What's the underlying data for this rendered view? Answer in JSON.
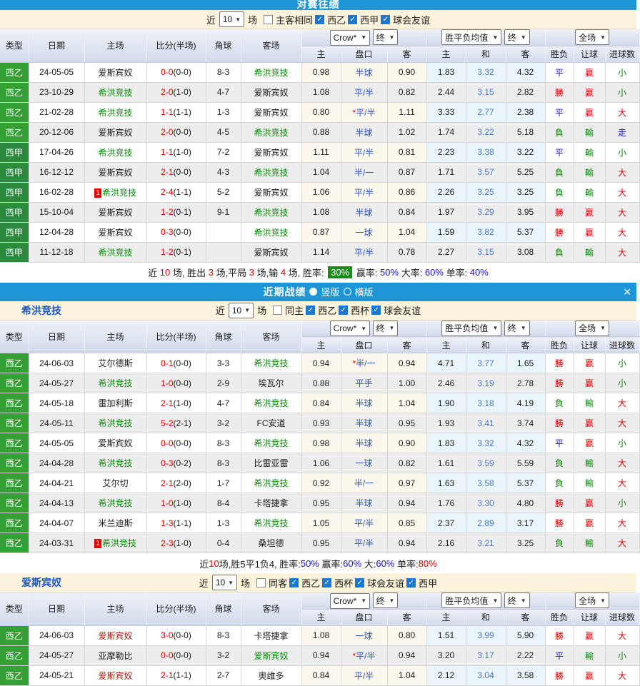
{
  "labels": {
    "near": "近",
    "games": "场"
  },
  "columns": {
    "main": [
      "类型",
      "日期",
      "主场",
      "比分(半场)",
      "角球",
      "客场"
    ],
    "sub": [
      "主",
      "盘口",
      "客",
      "主",
      "和",
      "客",
      "胜负",
      "让球",
      "进球数"
    ]
  },
  "selects": {
    "company": "Crow*",
    "final1": "终",
    "euro": "胜平负均值",
    "final2": "终",
    "scope": "全场"
  },
  "league_colors": {
    "西乙": "#35a035",
    "西甲": "#2c8a3e"
  },
  "text_colors": {
    "k": "#1a1a1a",
    "r": "#e60000",
    "g": "#078a07",
    "b": "#1414cc",
    "d": "#aa2211"
  },
  "accent": {
    "bar_blue": "#1e96d5",
    "cream": "#fcf3dc",
    "handicap_blue": "#2b50c8",
    "badge_green": "#1d8a1d"
  },
  "sections": [
    {
      "title": "对赛往绩",
      "filter": {
        "count": "10",
        "unchecked": "主客相同",
        "checked": [
          "西乙",
          "西甲",
          "球会友谊"
        ]
      },
      "rows": [
        [
          "西乙",
          "24-05-05",
          [
            "爱斯宾奴",
            "k"
          ],
          [
            "0-0",
            "(0-0)"
          ],
          "8-3",
          [
            "希洪竞技",
            "g"
          ],
          "0.98",
          "半球",
          "0.90",
          "1.83",
          "3.32",
          "4.32",
          [
            "平",
            "b"
          ],
          [
            "赢",
            "r"
          ],
          [
            "小",
            "g"
          ]
        ],
        [
          "西乙",
          "23-10-29",
          [
            "希洪竞技",
            "g"
          ],
          [
            "2-0",
            "(1-0)"
          ],
          "4-7",
          [
            "爱斯宾奴",
            "k"
          ],
          "1.08",
          "平/半",
          "0.82",
          "2.44",
          "3.15",
          "2.82",
          [
            "勝",
            "r"
          ],
          [
            "赢",
            "r"
          ],
          [
            "小",
            "g"
          ]
        ],
        [
          "西乙",
          "21-02-28",
          [
            "希洪竞技",
            "g"
          ],
          [
            "1-1",
            "(1-1)"
          ],
          "1-3",
          [
            "爱斯宾奴",
            "k"
          ],
          "0.80",
          "*平/半",
          "1.11",
          "3.33",
          "2.77",
          "2.38",
          [
            "平",
            "b"
          ],
          [
            "赢",
            "r"
          ],
          [
            "大",
            "r"
          ]
        ],
        [
          "西乙",
          "20-12-06",
          [
            "爱斯宾奴",
            "k"
          ],
          [
            "2-0",
            "(0-0)"
          ],
          "4-5",
          [
            "希洪竞技",
            "g"
          ],
          "0.88",
          "半球",
          "1.02",
          "1.74",
          "3.22",
          "5.18",
          [
            "負",
            "g"
          ],
          [
            "輸",
            "g"
          ],
          [
            "走",
            "b"
          ]
        ],
        [
          "西甲",
          "17-04-26",
          [
            "希洪竞技",
            "g"
          ],
          [
            "1-1",
            "(1-0)"
          ],
          "7-2",
          [
            "爱斯宾奴",
            "k"
          ],
          "1.11",
          "平/半",
          "0.81",
          "2.23",
          "3.38",
          "3.22",
          [
            "平",
            "b"
          ],
          [
            "輸",
            "g"
          ],
          [
            "小",
            "g"
          ]
        ],
        [
          "西甲",
          "16-12-12",
          [
            "爱斯宾奴",
            "k"
          ],
          [
            "2-1",
            "(0-0)"
          ],
          "4-3",
          [
            "希洪竞技",
            "g"
          ],
          "1.04",
          "半/一",
          "0.87",
          "1.71",
          "3.57",
          "5.25",
          [
            "負",
            "g"
          ],
          [
            "輸",
            "g"
          ],
          [
            "大",
            "r"
          ]
        ],
        [
          "西甲",
          "16-02-28",
          [
            "希洪竞技",
            "g",
            1
          ],
          [
            "2-4",
            "(1-1)"
          ],
          "5-2",
          [
            "爱斯宾奴",
            "k"
          ],
          "1.06",
          "平/半",
          "0.86",
          "2.26",
          "3.25",
          "3.25",
          [
            "負",
            "g"
          ],
          [
            "輸",
            "g"
          ],
          [
            "大",
            "r"
          ]
        ],
        [
          "西甲",
          "15-10-04",
          [
            "爱斯宾奴",
            "k"
          ],
          [
            "1-2",
            "(0-1)"
          ],
          "9-1",
          [
            "希洪竞技",
            "g"
          ],
          "1.08",
          "半球",
          "0.84",
          "1.97",
          "3.29",
          "3.95",
          [
            "勝",
            "r"
          ],
          [
            "赢",
            "r"
          ],
          [
            "大",
            "r"
          ]
        ],
        [
          "西甲",
          "12-04-28",
          [
            "爱斯宾奴",
            "k"
          ],
          [
            "0-3",
            "(0-0)"
          ],
          "",
          [
            "希洪竞技",
            "g"
          ],
          "0.87",
          "一球",
          "1.04",
          "1.59",
          "3.82",
          "5.37",
          [
            "勝",
            "r"
          ],
          [
            "赢",
            "r"
          ],
          [
            "大",
            "r"
          ]
        ],
        [
          "西甲",
          "11-12-18",
          [
            "希洪竞技",
            "g"
          ],
          [
            "1-2",
            "(0-1)"
          ],
          "",
          [
            "爱斯宾奴",
            "k"
          ],
          "1.14",
          "平/半",
          "0.78",
          "2.27",
          "3.15",
          "3.08",
          [
            "負",
            "g"
          ],
          [
            "輸",
            "g"
          ],
          [
            "大",
            "r"
          ]
        ]
      ],
      "summary": [
        [
          "近 ",
          "k"
        ],
        [
          "10",
          "r"
        ],
        [
          " 场, 胜出 ",
          "k"
        ],
        [
          "3",
          "r"
        ],
        [
          " 场,平局 ",
          "k"
        ],
        [
          "3",
          "r"
        ],
        [
          " 场,输 ",
          "k"
        ],
        [
          "4",
          "r"
        ],
        [
          " 场, 胜率: ",
          "k"
        ],
        [
          "30%",
          "badge"
        ],
        [
          " 赢率: ",
          "k"
        ],
        [
          "50%",
          "b"
        ],
        [
          " 大率: ",
          "k"
        ],
        [
          "60%",
          "b"
        ],
        [
          " 单率: ",
          "k"
        ],
        [
          "40%",
          "b"
        ]
      ]
    },
    {
      "bar": {
        "title": "近期战绩",
        "vertical": "竖版",
        "horizontal": "横版",
        "close": "✕"
      },
      "team": "希洪竞技",
      "filter": {
        "count": "10",
        "unchecked": "同主",
        "checked": [
          "西乙",
          "西杯",
          "球会友谊"
        ]
      },
      "rows": [
        [
          "西乙",
          "24-06-03",
          [
            "艾尔德斯",
            "k"
          ],
          [
            "0-1",
            "(0-0)"
          ],
          "3-3",
          [
            "希洪竞技",
            "g"
          ],
          "0.94",
          "*半/一",
          "0.94",
          "4.71",
          "3.77",
          "1.65",
          [
            "勝",
            "r"
          ],
          [
            "赢",
            "r"
          ],
          [
            "小",
            "g"
          ]
        ],
        [
          "西乙",
          "24-05-27",
          [
            "希洪竞技",
            "g"
          ],
          [
            "1-0",
            "(0-0)"
          ],
          "2-9",
          [
            "埃瓦尔",
            "k"
          ],
          "0.88",
          "平手",
          "1.00",
          "2.46",
          "3.19",
          "2.78",
          [
            "勝",
            "r"
          ],
          [
            "赢",
            "r"
          ],
          [
            "小",
            "g"
          ]
        ],
        [
          "西乙",
          "24-05-18",
          [
            "雷加利斯",
            "k"
          ],
          [
            "2-1",
            "(1-0)"
          ],
          "4-7",
          [
            "希洪竞技",
            "g"
          ],
          "0.84",
          "半球",
          "1.04",
          "1.90",
          "3.18",
          "4.19",
          [
            "負",
            "g"
          ],
          [
            "輸",
            "g"
          ],
          [
            "大",
            "r"
          ]
        ],
        [
          "西乙",
          "24-05-11",
          [
            "希洪竞技",
            "g"
          ],
          [
            "5-2",
            "(2-1)"
          ],
          "3-2",
          [
            "FC安道",
            "k"
          ],
          "0.93",
          "半球",
          "0.95",
          "1.93",
          "3.41",
          "3.74",
          [
            "勝",
            "r"
          ],
          [
            "赢",
            "r"
          ],
          [
            "大",
            "r"
          ]
        ],
        [
          "西乙",
          "24-05-05",
          [
            "爱斯宾奴",
            "k"
          ],
          [
            "0-0",
            "(0-0)"
          ],
          "8-3",
          [
            "希洪竞技",
            "g"
          ],
          "0.98",
          "半球",
          "0.90",
          "1.83",
          "3.32",
          "4.32",
          [
            "平",
            "b"
          ],
          [
            "赢",
            "r"
          ],
          [
            "小",
            "g"
          ]
        ],
        [
          "西乙",
          "24-04-28",
          [
            "希洪竞技",
            "g"
          ],
          [
            "0-3",
            "(0-2)"
          ],
          "8-3",
          [
            "比雷亚雷",
            "k"
          ],
          "1.06",
          "一球",
          "0.82",
          "1.61",
          "3.59",
          "5.59",
          [
            "負",
            "g"
          ],
          [
            "輸",
            "g"
          ],
          [
            "大",
            "r"
          ]
        ],
        [
          "西乙",
          "24-04-21",
          [
            "艾尔切",
            "k"
          ],
          [
            "2-1",
            "(2-0)"
          ],
          "1-7",
          [
            "希洪竞技",
            "g"
          ],
          "0.92",
          "半/一",
          "0.97",
          "1.63",
          "3.58",
          "5.37",
          [
            "負",
            "g"
          ],
          [
            "輸",
            "g"
          ],
          [
            "大",
            "r"
          ]
        ],
        [
          "西乙",
          "24-04-13",
          [
            "希洪竞技",
            "g"
          ],
          [
            "1-0",
            "(1-0)"
          ],
          "8-4",
          [
            "卡塔捷拿",
            "k"
          ],
          "0.95",
          "半球",
          "0.94",
          "1.76",
          "3.30",
          "4.80",
          [
            "勝",
            "r"
          ],
          [
            "赢",
            "r"
          ],
          [
            "小",
            "g"
          ]
        ],
        [
          "西乙",
          "24-04-07",
          [
            "米兰迪斯",
            "k"
          ],
          [
            "1-3",
            "(1-1)"
          ],
          "1-3",
          [
            "希洪竞技",
            "g"
          ],
          "1.05",
          "平/半",
          "0.85",
          "2.37",
          "2.89",
          "3.17",
          [
            "勝",
            "r"
          ],
          [
            "赢",
            "r"
          ],
          [
            "大",
            "r"
          ]
        ],
        [
          "西乙",
          "24-03-31",
          [
            "希洪竞技",
            "g",
            1
          ],
          [
            "2-3",
            "(1-0)"
          ],
          "0-4",
          [
            "桑坦德",
            "k"
          ],
          "0.95",
          "平/半",
          "0.94",
          "2.16",
          "3.21",
          "3.25",
          [
            "負",
            "g"
          ],
          [
            "輸",
            "g"
          ],
          [
            "大",
            "r"
          ]
        ]
      ],
      "summary": [
        [
          "近",
          "k"
        ],
        [
          "10",
          "r"
        ],
        [
          "场,胜5平1负4, 胜率:",
          "k"
        ],
        [
          "50%",
          "b"
        ],
        [
          " 赢率:",
          "k"
        ],
        [
          "60%",
          "b"
        ],
        [
          " 大:",
          "k"
        ],
        [
          "60%",
          "b"
        ],
        [
          " 单率:",
          "k"
        ],
        [
          "80%",
          "r"
        ]
      ]
    },
    {
      "team": "爱斯宾奴",
      "filter": {
        "count": "10",
        "unchecked": "同客",
        "checked": [
          "西乙",
          "西杯",
          "球会友谊",
          "西甲"
        ]
      },
      "rows": [
        [
          "西乙",
          "24-06-03",
          [
            "爱斯宾奴",
            "d"
          ],
          [
            "3-0",
            "(0-0)"
          ],
          "8-3",
          [
            "卡塔捷拿",
            "k"
          ],
          "1.08",
          "一球",
          "0.80",
          "1.51",
          "3.99",
          "5.90",
          [
            "勝",
            "r"
          ],
          [
            "赢",
            "r"
          ],
          [
            "大",
            "r"
          ]
        ],
        [
          "西乙",
          "24-05-27",
          [
            "亚摩勒比",
            "k"
          ],
          [
            "0-0",
            "(0-0)"
          ],
          "3-2",
          [
            "爱斯宾奴",
            "g"
          ],
          "0.94",
          "*平/半",
          "0.94",
          "3.20",
          "3.17",
          "2.22",
          [
            "平",
            "b"
          ],
          [
            "輸",
            "g"
          ],
          [
            "小",
            "g"
          ]
        ],
        [
          "西乙",
          "24-05-21",
          [
            "爱斯宾奴",
            "d"
          ],
          [
            "2-1",
            "(1-1)"
          ],
          "2-7",
          [
            "奥维多",
            "k"
          ],
          "0.84",
          "平/半",
          "1.04",
          "2.12",
          "3.04",
          "3.58",
          [
            "勝",
            "r"
          ],
          [
            "赢",
            "r"
          ],
          [
            "大",
            "r"
          ]
        ]
      ]
    }
  ]
}
